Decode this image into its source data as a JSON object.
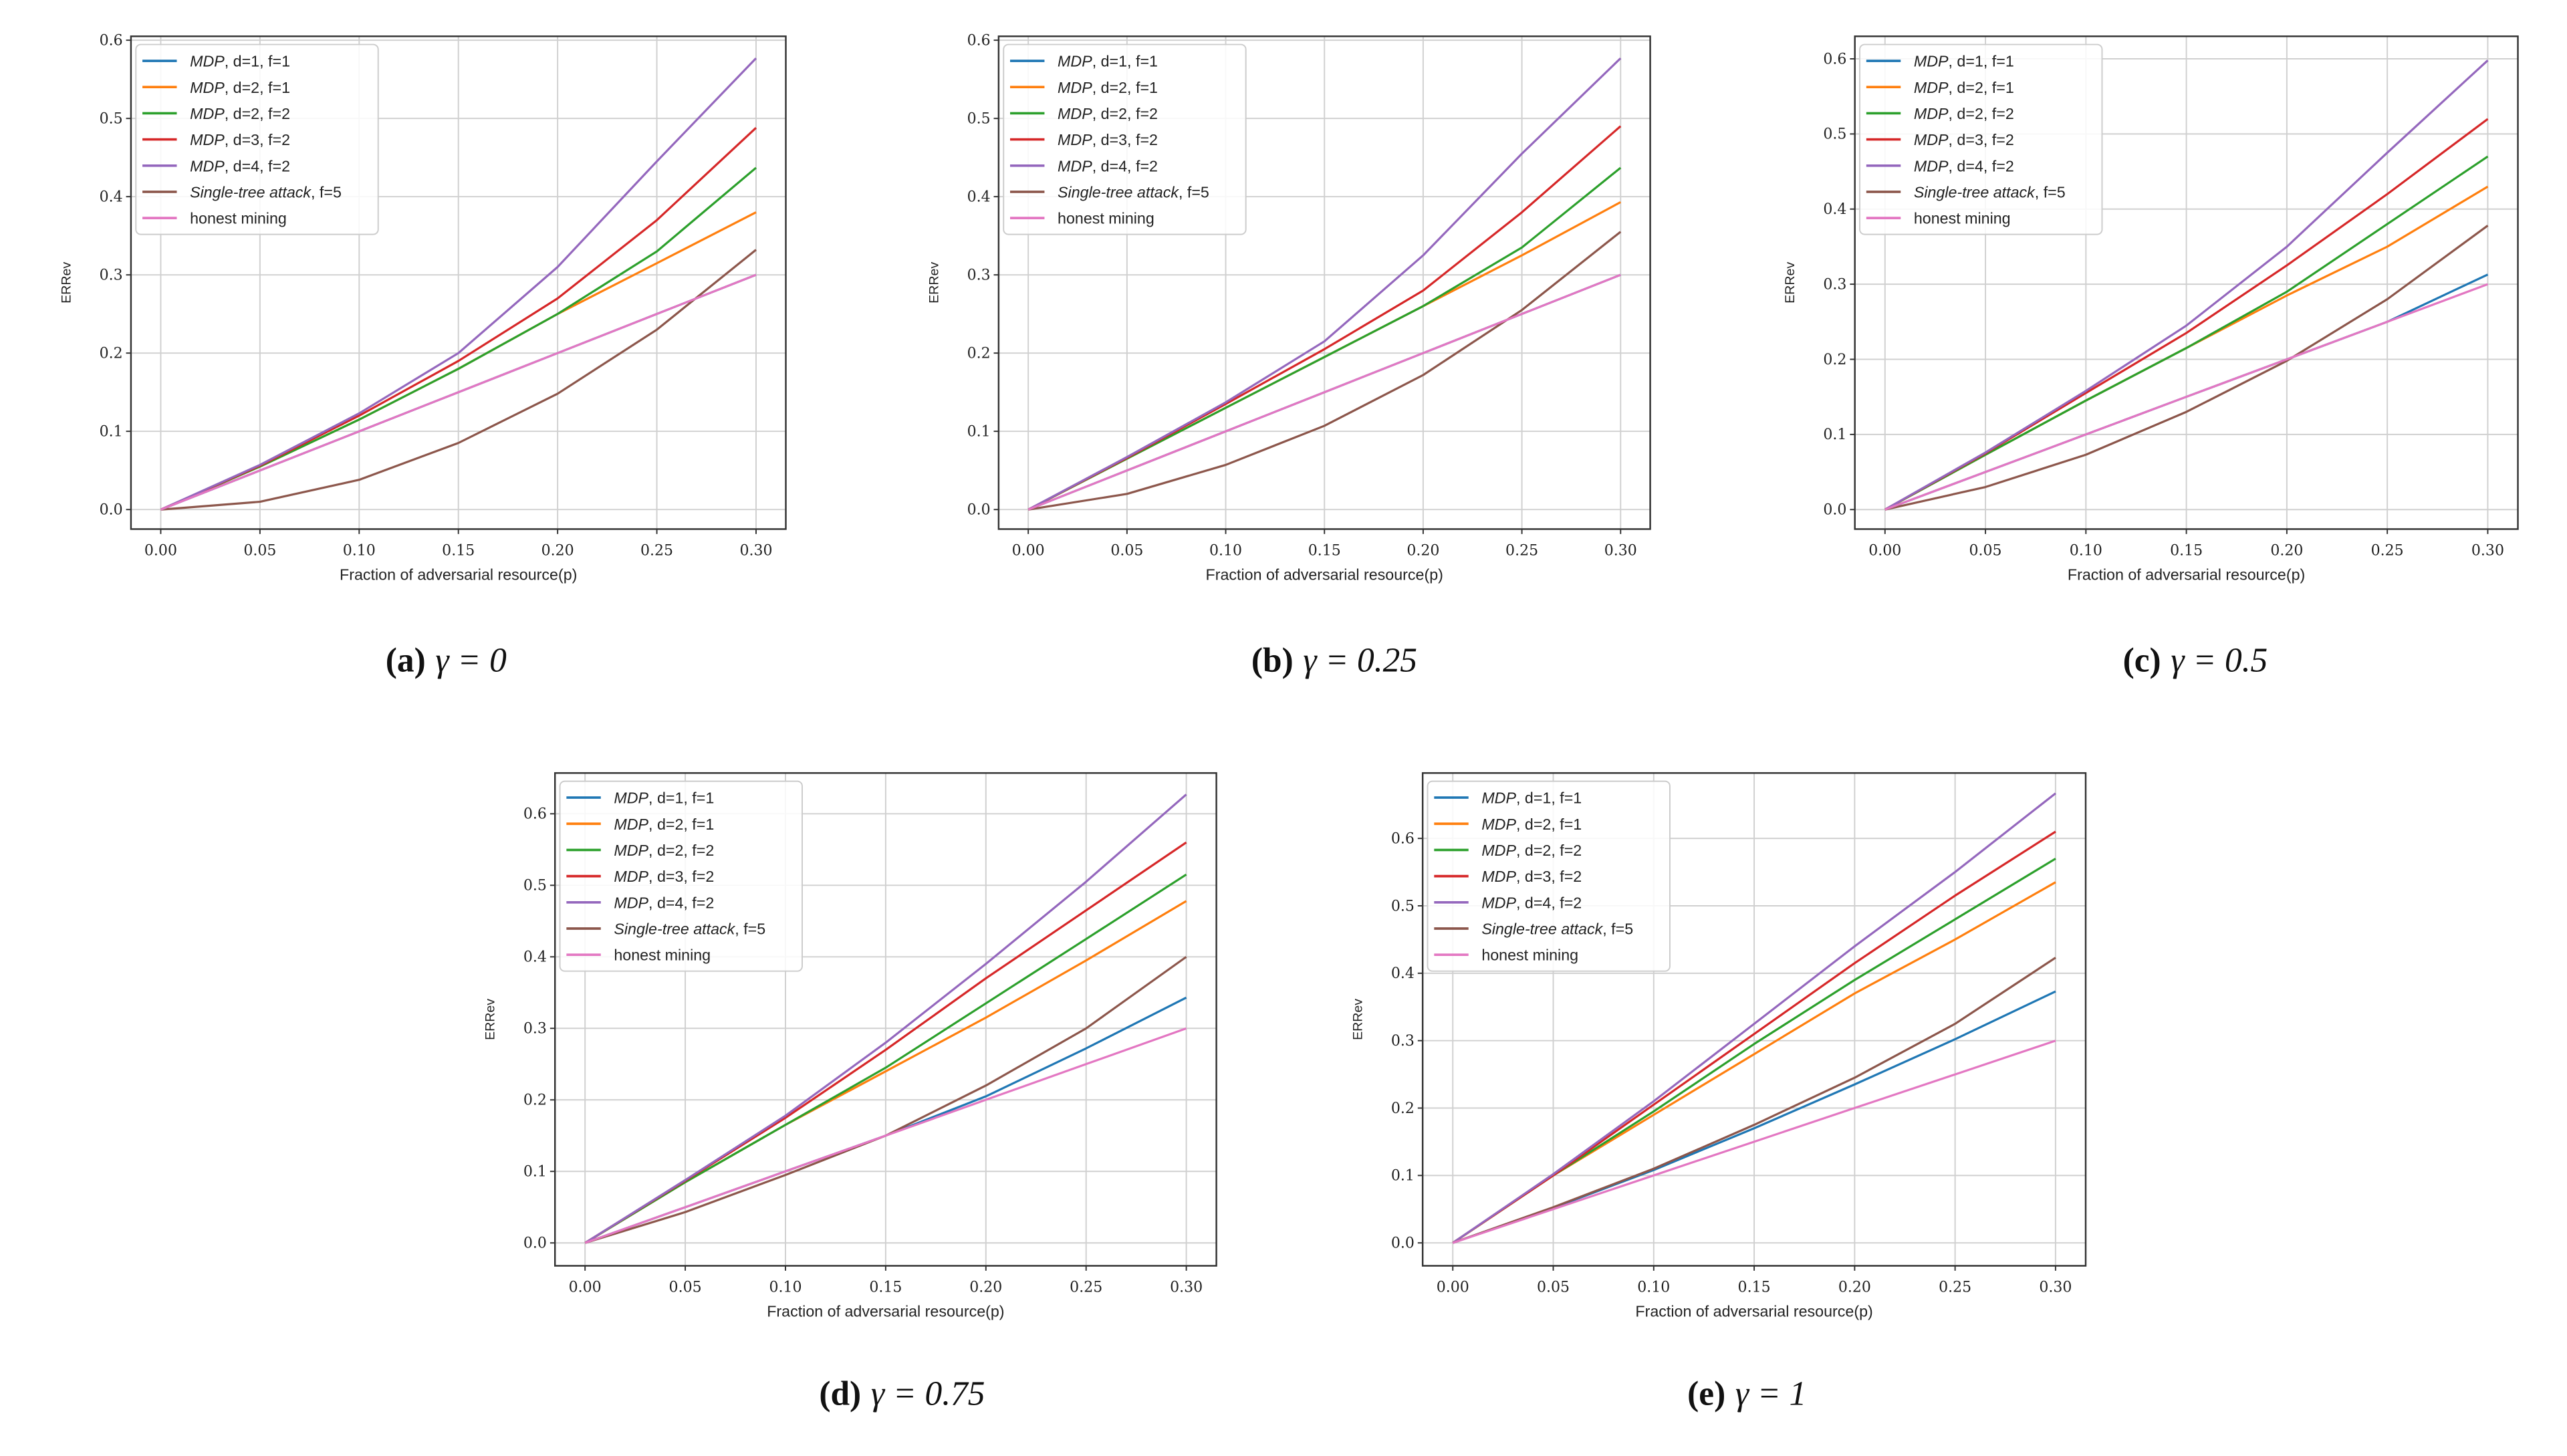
{
  "x_label": "Fraction of adversarial resource(p)",
  "y_label": "ERRev",
  "colors": [
    "#1f77b4",
    "#ff7f0e",
    "#2ca02c",
    "#d62728",
    "#9467bd",
    "#8c564b",
    "#e377c2"
  ],
  "chart_data": [
    {
      "type": "line",
      "caption_tag": "(a)",
      "caption_math": "γ = 0",
      "x": [
        0,
        0.05,
        0.1,
        0.15,
        0.2,
        0.25,
        0.3
      ],
      "xlim": [
        -0.015,
        0.315
      ],
      "ylim": [
        -0.025,
        0.605
      ],
      "xticks": [
        "0.00",
        "0.05",
        "0.10",
        "0.15",
        "0.20",
        "0.25",
        "0.30"
      ],
      "yticks": [
        "0.0",
        "0.1",
        "0.2",
        "0.3",
        "0.4",
        "0.5",
        "0.6"
      ],
      "grid": true,
      "legend": "top-left",
      "series": [
        {
          "name": "MDP, d=1, f=1",
          "values": [
            0,
            0.05,
            0.1,
            0.15,
            0.2,
            0.25,
            0.3
          ]
        },
        {
          "name": "MDP, d=2, f=1",
          "values": [
            0,
            0.055,
            0.115,
            0.18,
            0.25,
            0.315,
            0.38
          ]
        },
        {
          "name": "MDP, d=2, f=2",
          "values": [
            0,
            0.055,
            0.115,
            0.18,
            0.25,
            0.33,
            0.437
          ]
        },
        {
          "name": "MDP, d=3, f=2",
          "values": [
            0,
            0.056,
            0.12,
            0.19,
            0.27,
            0.37,
            0.488
          ]
        },
        {
          "name": "MDP, d=4, f=2",
          "values": [
            0,
            0.057,
            0.123,
            0.2,
            0.31,
            0.445,
            0.577
          ]
        },
        {
          "name": "Single-tree attack, f=5",
          "values": [
            0,
            0.01,
            0.038,
            0.085,
            0.148,
            0.23,
            0.332
          ]
        },
        {
          "name": "honest mining",
          "values": [
            0,
            0.05,
            0.1,
            0.15,
            0.2,
            0.25,
            0.3
          ]
        }
      ]
    },
    {
      "type": "line",
      "caption_tag": "(b)",
      "caption_math": "γ = 0.25",
      "x": [
        0,
        0.05,
        0.1,
        0.15,
        0.2,
        0.25,
        0.3
      ],
      "xlim": [
        -0.015,
        0.315
      ],
      "ylim": [
        -0.025,
        0.605
      ],
      "xticks": [
        "0.00",
        "0.05",
        "0.10",
        "0.15",
        "0.20",
        "0.25",
        "0.30"
      ],
      "yticks": [
        "0.0",
        "0.1",
        "0.2",
        "0.3",
        "0.4",
        "0.5",
        "0.6"
      ],
      "grid": true,
      "legend": "top-left",
      "series": [
        {
          "name": "MDP, d=1, f=1",
          "values": [
            0,
            0.05,
            0.1,
            0.15,
            0.2,
            0.25,
            0.3
          ]
        },
        {
          "name": "MDP, d=2, f=1",
          "values": [
            0,
            0.065,
            0.13,
            0.195,
            0.26,
            0.325,
            0.393
          ]
        },
        {
          "name": "MDP, d=2, f=2",
          "values": [
            0,
            0.065,
            0.13,
            0.195,
            0.26,
            0.335,
            0.437
          ]
        },
        {
          "name": "MDP, d=3, f=2",
          "values": [
            0,
            0.066,
            0.135,
            0.205,
            0.28,
            0.38,
            0.49
          ]
        },
        {
          "name": "MDP, d=4, f=2",
          "values": [
            0,
            0.067,
            0.137,
            0.215,
            0.325,
            0.455,
            0.577
          ]
        },
        {
          "name": "Single-tree attack, f=5",
          "values": [
            0,
            0.02,
            0.057,
            0.107,
            0.172,
            0.255,
            0.355
          ]
        },
        {
          "name": "honest mining",
          "values": [
            0,
            0.05,
            0.1,
            0.15,
            0.2,
            0.25,
            0.3
          ]
        }
      ]
    },
    {
      "type": "line",
      "caption_tag": "(c)",
      "caption_math": "γ = 0.5",
      "x": [
        0,
        0.05,
        0.1,
        0.15,
        0.2,
        0.25,
        0.3
      ],
      "xlim": [
        -0.015,
        0.315
      ],
      "ylim": [
        -0.026,
        0.63
      ],
      "xticks": [
        "0.00",
        "0.05",
        "0.10",
        "0.15",
        "0.20",
        "0.25",
        "0.30"
      ],
      "yticks": [
        "0.0",
        "0.1",
        "0.2",
        "0.3",
        "0.4",
        "0.5",
        "0.6"
      ],
      "grid": true,
      "legend": "top-left",
      "series": [
        {
          "name": "MDP, d=1, f=1",
          "values": [
            0,
            0.05,
            0.1,
            0.15,
            0.2,
            0.25,
            0.313
          ]
        },
        {
          "name": "MDP, d=2, f=1",
          "values": [
            0,
            0.073,
            0.145,
            0.215,
            0.285,
            0.35,
            0.43
          ]
        },
        {
          "name": "MDP, d=2, f=2",
          "values": [
            0,
            0.073,
            0.145,
            0.215,
            0.29,
            0.38,
            0.47
          ]
        },
        {
          "name": "MDP, d=3, f=2",
          "values": [
            0,
            0.075,
            0.155,
            0.235,
            0.325,
            0.42,
            0.52
          ]
        },
        {
          "name": "MDP, d=4, f=2",
          "values": [
            0,
            0.076,
            0.158,
            0.245,
            0.35,
            0.475,
            0.598
          ]
        },
        {
          "name": "Single-tree attack, f=5",
          "values": [
            0,
            0.03,
            0.073,
            0.13,
            0.198,
            0.28,
            0.378
          ]
        },
        {
          "name": "honest mining",
          "values": [
            0,
            0.05,
            0.1,
            0.15,
            0.2,
            0.25,
            0.3
          ]
        }
      ]
    },
    {
      "type": "line",
      "caption_tag": "(d)",
      "caption_math": "γ = 0.75",
      "x": [
        0,
        0.05,
        0.1,
        0.15,
        0.2,
        0.25,
        0.3
      ],
      "xlim": [
        -0.015,
        0.315
      ],
      "ylim": [
        -0.032,
        0.657
      ],
      "xticks": [
        "0.00",
        "0.05",
        "0.10",
        "0.15",
        "0.20",
        "0.25",
        "0.30"
      ],
      "yticks": [
        "0.0",
        "0.1",
        "0.2",
        "0.3",
        "0.4",
        "0.5",
        "0.6"
      ],
      "grid": true,
      "legend": "top-left",
      "series": [
        {
          "name": "MDP, d=1, f=1",
          "values": [
            0,
            0.05,
            0.1,
            0.15,
            0.205,
            0.272,
            0.343
          ]
        },
        {
          "name": "MDP, d=2, f=1",
          "values": [
            0,
            0.085,
            0.165,
            0.24,
            0.315,
            0.395,
            0.478
          ]
        },
        {
          "name": "MDP, d=2, f=2",
          "values": [
            0,
            0.085,
            0.165,
            0.245,
            0.335,
            0.425,
            0.515
          ]
        },
        {
          "name": "MDP, d=3, f=2",
          "values": [
            0,
            0.087,
            0.175,
            0.27,
            0.37,
            0.465,
            0.56
          ]
        },
        {
          "name": "MDP, d=4, f=2",
          "values": [
            0,
            0.088,
            0.178,
            0.28,
            0.39,
            0.505,
            0.627
          ]
        },
        {
          "name": "Single-tree attack, f=5",
          "values": [
            0,
            0.043,
            0.095,
            0.15,
            0.22,
            0.3,
            0.4
          ]
        },
        {
          "name": "honest mining",
          "values": [
            0,
            0.05,
            0.1,
            0.15,
            0.2,
            0.25,
            0.3
          ]
        }
      ]
    },
    {
      "type": "line",
      "caption_tag": "(e)",
      "caption_math": "γ = 1",
      "x": [
        0,
        0.05,
        0.1,
        0.15,
        0.2,
        0.25,
        0.3
      ],
      "xlim": [
        -0.015,
        0.315
      ],
      "ylim": [
        -0.034,
        0.697
      ],
      "xticks": [
        "0.00",
        "0.05",
        "0.10",
        "0.15",
        "0.20",
        "0.25",
        "0.30"
      ],
      "yticks": [
        "0.0",
        "0.1",
        "0.2",
        "0.3",
        "0.4",
        "0.5",
        "0.6"
      ],
      "grid": true,
      "legend": "top-left",
      "series": [
        {
          "name": "MDP, d=1, f=1",
          "values": [
            0,
            0.052,
            0.108,
            0.17,
            0.235,
            0.302,
            0.373
          ]
        },
        {
          "name": "MDP, d=2, f=1",
          "values": [
            0,
            0.1,
            0.19,
            0.28,
            0.37,
            0.45,
            0.535
          ]
        },
        {
          "name": "MDP, d=2, f=2",
          "values": [
            0,
            0.1,
            0.195,
            0.295,
            0.39,
            0.48,
            0.57
          ]
        },
        {
          "name": "MDP, d=3, f=2",
          "values": [
            0,
            0.1,
            0.205,
            0.31,
            0.415,
            0.515,
            0.61
          ]
        },
        {
          "name": "MDP, d=4, f=2",
          "values": [
            0,
            0.102,
            0.21,
            0.325,
            0.44,
            0.55,
            0.667
          ]
        },
        {
          "name": "Single-tree attack, f=5",
          "values": [
            0,
            0.053,
            0.11,
            0.175,
            0.245,
            0.325,
            0.423
          ]
        },
        {
          "name": "honest mining",
          "values": [
            0,
            0.05,
            0.1,
            0.15,
            0.2,
            0.25,
            0.3
          ]
        }
      ]
    }
  ]
}
